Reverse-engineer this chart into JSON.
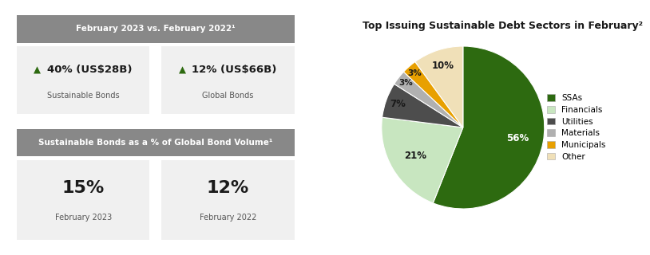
{
  "title_pie": "Top Issuing Sustainable Debt Sectors in February²",
  "pie_labels": [
    "SSAs",
    "Financials",
    "Utilities",
    "Materials",
    "Municipals",
    "Other"
  ],
  "pie_values": [
    56,
    21,
    7,
    3,
    3,
    10
  ],
  "pie_colors": [
    "#2d6a10",
    "#c8e6c0",
    "#4d4d4d",
    "#b0b0b0",
    "#e8a000",
    "#f0e0b8"
  ],
  "header1": "February 2023 vs. February 2022¹",
  "header2": "Sustainable Bonds as a % of Global Bond Volume¹",
  "box1_label": "Sustainable Bonds",
  "box1_value": "40% (US$28B)",
  "box2_label": "Global Bonds",
  "box2_value": "12% (US$66B)",
  "box3_value": "15%",
  "box3_label": "February 2023",
  "box4_value": "12%",
  "box4_label": "February 2022",
  "header_bg": "#888888",
  "header_fg": "#ffffff",
  "box_bg": "#f0f0f0",
  "arrow_color": "#2d6a10",
  "value_color": "#1a1a1a",
  "label_color": "#555555",
  "bg_color": "#ffffff"
}
